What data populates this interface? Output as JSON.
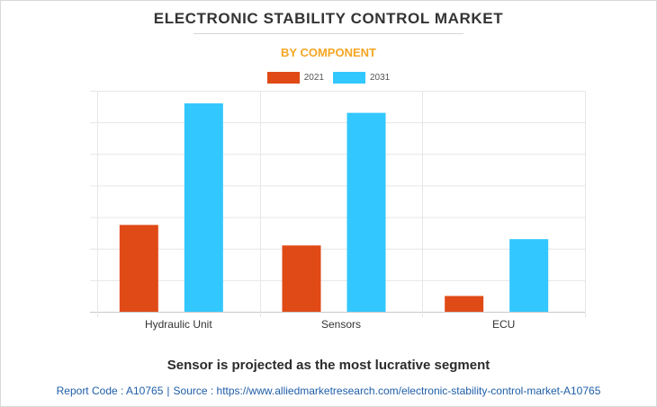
{
  "header": {
    "title": "ELECTRONIC STABILITY CONTROL MARKET",
    "subtitle": "BY COMPONENT"
  },
  "chart_data": {
    "type": "bar",
    "title": "ELECTRONIC STABILITY CONTROL MARKET",
    "subtitle": "BY COMPONENT",
    "categories": [
      "Hydraulic Unit",
      "Sensors",
      "ECU"
    ],
    "series": [
      {
        "name": "2021",
        "color": "#e04a17",
        "values": [
          2.75,
          2.1,
          0.5
        ]
      },
      {
        "name": "2031",
        "color": "#33c7ff",
        "values": [
          6.6,
          6.3,
          2.3
        ]
      }
    ],
    "ylim": [
      0,
      7
    ],
    "y_ticks": [
      0,
      1,
      2,
      3,
      4,
      5,
      6,
      7
    ],
    "y_tick_labels_visible": false,
    "xlabel": "",
    "ylabel": "",
    "grid": true,
    "legend_position": "top-center"
  },
  "footer": {
    "note": "Sensor is projected as the most lucrative segment",
    "report_code": "Report Code : A10765",
    "separator": "|",
    "source": "Source : https://www.alliedmarketresearch.com/electronic-stability-control-market-A10765"
  }
}
